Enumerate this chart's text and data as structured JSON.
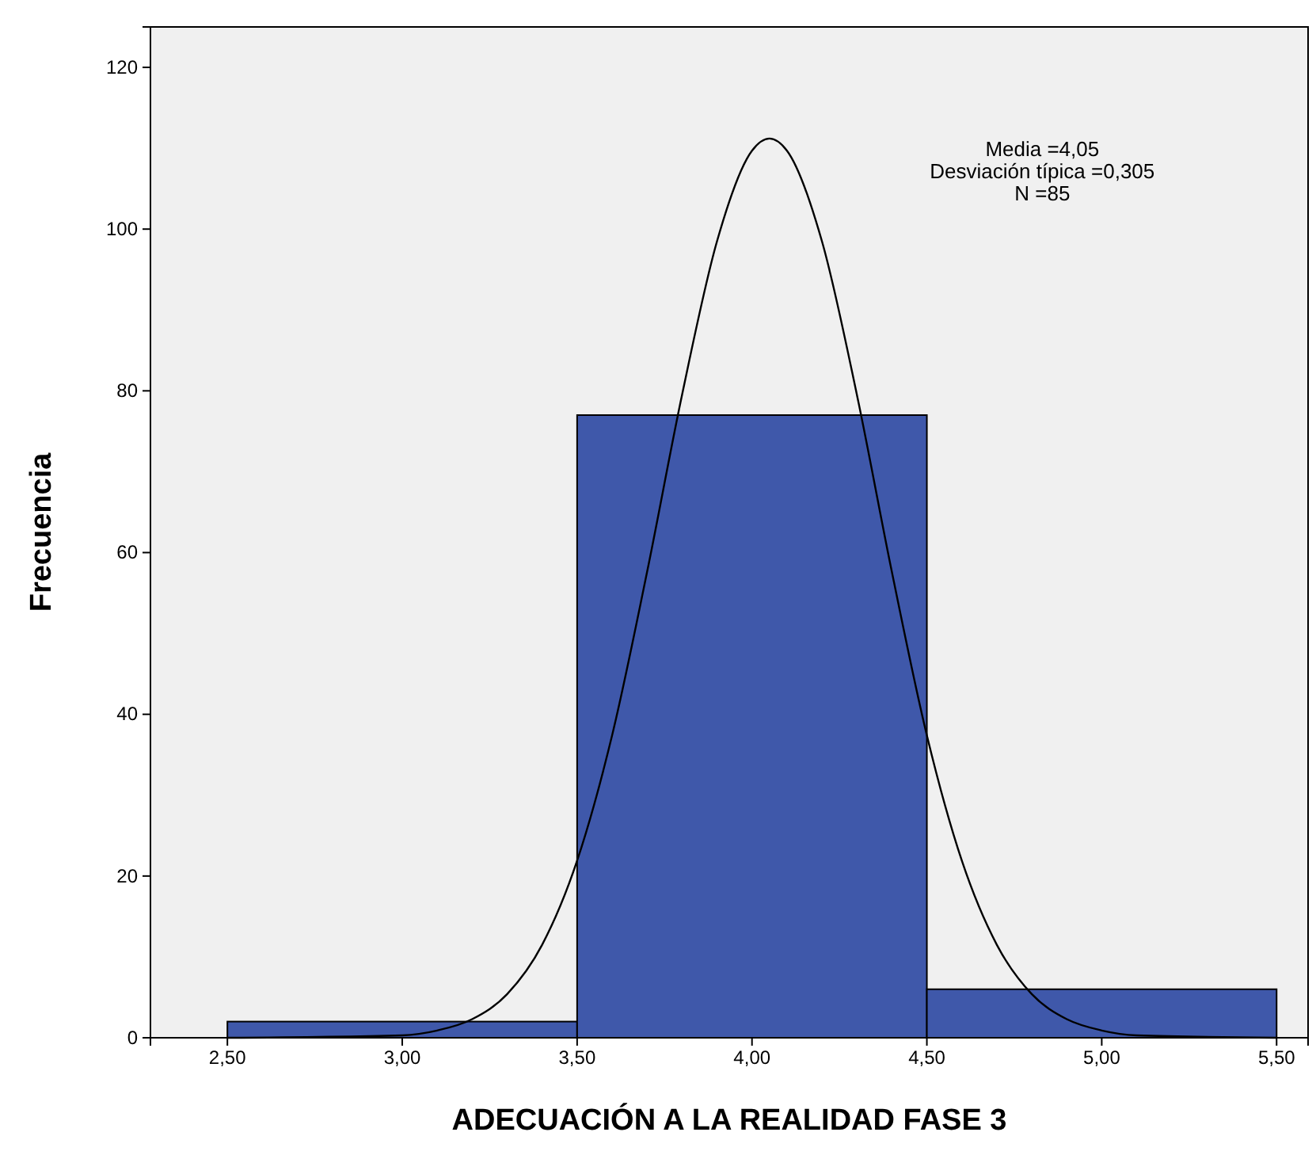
{
  "chart_data": {
    "type": "histogram",
    "xlabel": "ADECUACIÓN A LA REALIDAD FASE 3",
    "ylabel": "Frecuencia",
    "bins": [
      2.5,
      3.5,
      4.5,
      5.5
    ],
    "values": [
      2,
      77,
      6
    ],
    "color": "#3f58aa",
    "series": [
      {
        "type": "line",
        "color": "#000000",
        "x": [
          2.5,
          3.0,
          3.1,
          3.2,
          3.3,
          3.4,
          3.5,
          3.6,
          3.7,
          3.8,
          3.9,
          4.0,
          4.05,
          4.1,
          4.2,
          4.3,
          4.4,
          4.5,
          4.6,
          4.7,
          4.8,
          4.9,
          5.0,
          5.1,
          5.5
        ],
        "values": [
          0,
          0.3,
          0.9,
          2.3,
          5.4,
          11.5,
          21.9,
          37.4,
          57.6,
          79.5,
          98.5,
          109.7,
          111.2,
          109.7,
          98.5,
          79.5,
          57.6,
          37.4,
          21.9,
          11.5,
          5.4,
          2.3,
          0.9,
          0.3,
          0
        ]
      }
    ],
    "xlim": [
      2.28,
      5.59
    ],
    "ylim": [
      0,
      125
    ],
    "xticks": [
      {
        "value": 2.5,
        "label": "2,50"
      },
      {
        "value": 3,
        "label": "3,00"
      },
      {
        "value": 3.5,
        "label": "3,50"
      },
      {
        "value": 4,
        "label": "4,00"
      },
      {
        "value": 4.5,
        "label": "4,50"
      },
      {
        "value": 5,
        "label": "5,00"
      },
      {
        "value": 5.5,
        "label": "5,50"
      }
    ],
    "yticks": [
      0,
      20,
      40,
      60,
      80,
      100,
      120
    ],
    "annotations": [
      "Media =4,05",
      "Desviación típica =0,305",
      "N =85"
    ],
    "grid": false
  }
}
